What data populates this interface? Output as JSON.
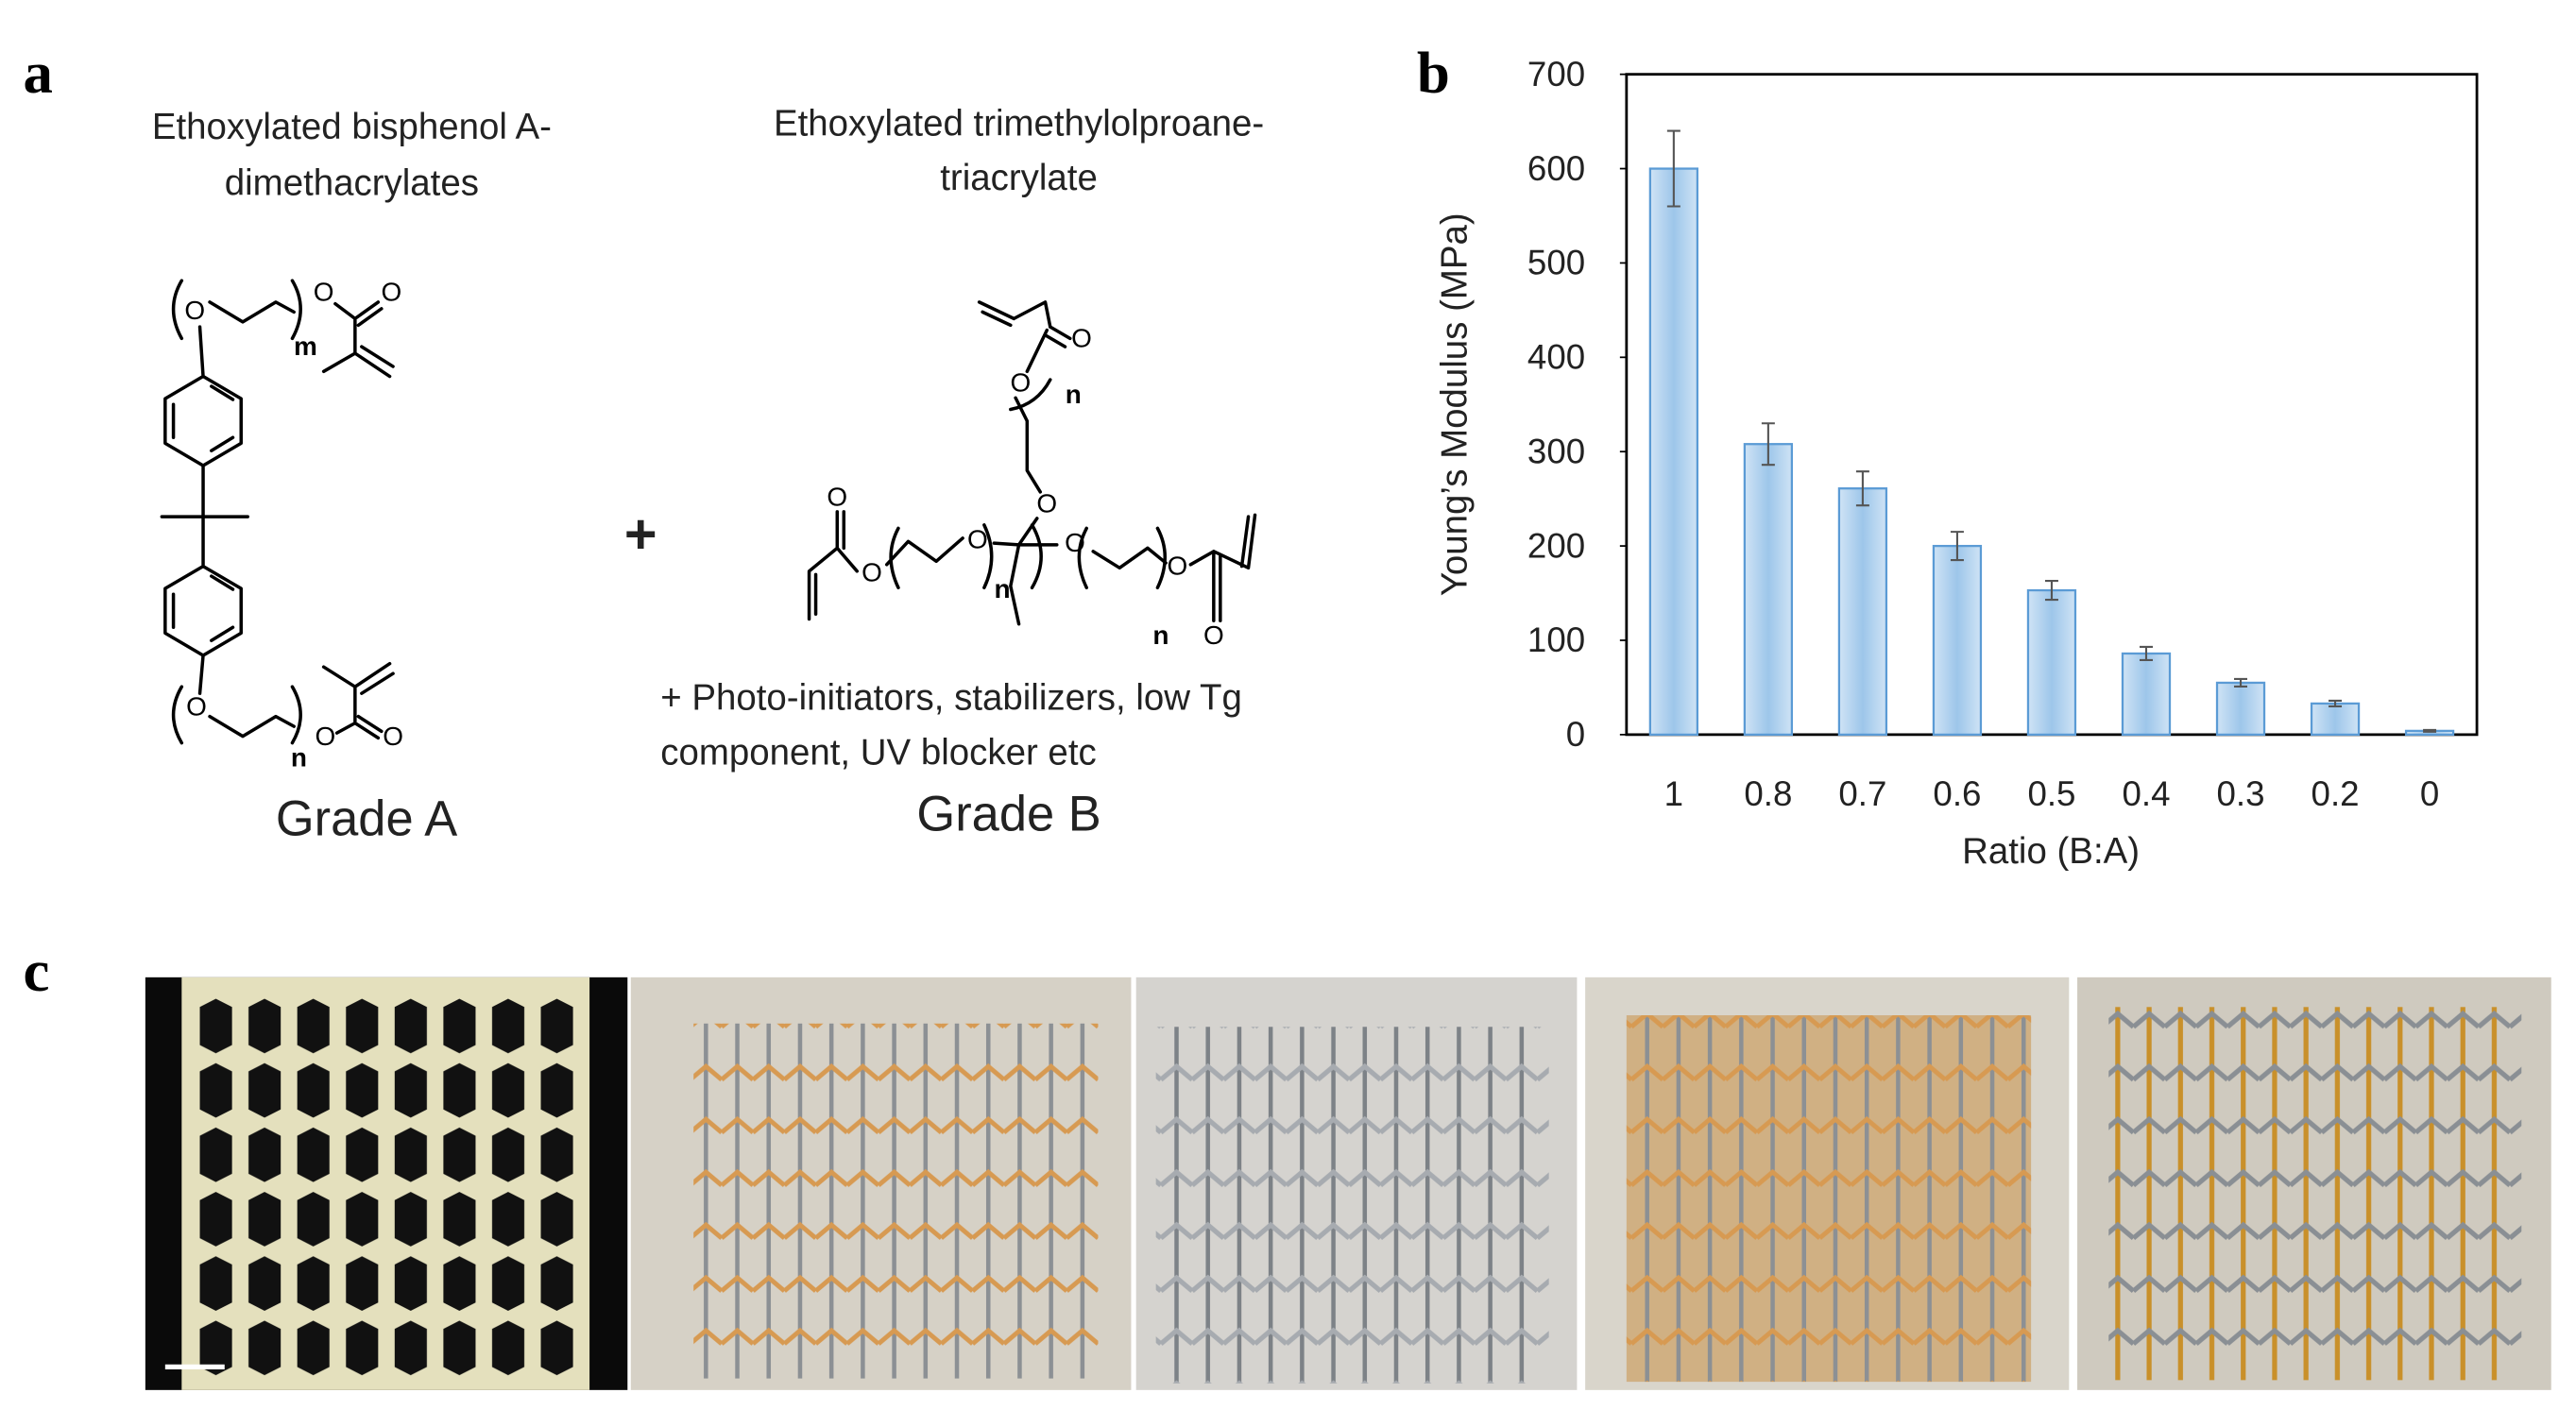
{
  "panel_a": {
    "label": "a",
    "grade_a": {
      "name_lines": [
        "Ethoxylated bisphenol A-",
        "dimethacrylates"
      ],
      "atoms": [
        "O",
        "m",
        "O",
        "O",
        "O",
        "n",
        "O",
        "O"
      ],
      "caption": "Grade A"
    },
    "plus": "+",
    "grade_b": {
      "name_lines": [
        "Ethoxylated trimethylolproane-",
        "triacrylate"
      ],
      "atoms": [
        "O",
        "O",
        "n",
        "O",
        "O",
        "O",
        "O",
        "n",
        "O",
        "n",
        "O",
        "O"
      ],
      "additives": [
        "+ Photo-initiators, stabilizers, low Tg",
        "component, UV blocker etc"
      ],
      "caption": "Grade B"
    }
  },
  "chart_data": {
    "panel_label": "b",
    "type": "bar",
    "x_label": "Ratio (B:A)",
    "y_label": "Young’s Modulus (MPa)",
    "categories": [
      "1",
      "0.8",
      "0.7",
      "0.6",
      "0.5",
      "0.4",
      "0.3",
      "0.2",
      "0"
    ],
    "values": [
      600,
      308,
      261,
      200,
      153,
      86,
      55,
      33,
      4
    ],
    "errors": [
      40,
      22,
      18,
      15,
      10,
      7,
      4,
      3,
      1
    ],
    "color": "#9dc6ea",
    "ylim": [
      0,
      700
    ],
    "yticks": [
      0,
      100,
      200,
      300,
      400,
      500,
      600,
      700
    ],
    "grid": false
  },
  "panel_c": {
    "label": "c"
  }
}
